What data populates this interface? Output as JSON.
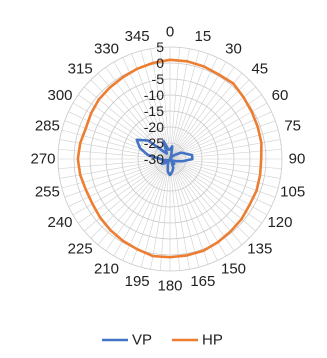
{
  "chart_data": {
    "type": "line",
    "subtype": "polar",
    "title": "",
    "angle_ticks": [
      0,
      15,
      30,
      45,
      60,
      75,
      90,
      105,
      120,
      135,
      150,
      165,
      180,
      195,
      210,
      225,
      240,
      255,
      270,
      285,
      300,
      315,
      330,
      345
    ],
    "radial_ticks": [
      5,
      0,
      -5,
      -10,
      -15,
      -20,
      -25,
      -30
    ],
    "rlim": [
      -30,
      5
    ],
    "angle_grid_step": 5,
    "grid": true,
    "legend_position": "bottom",
    "series": [
      {
        "name": "VP",
        "color": "#4472C4",
        "angles": [
          0,
          10,
          20,
          30,
          40,
          50,
          60,
          70,
          80,
          90,
          100,
          110,
          120,
          130,
          140,
          150,
          160,
          170,
          180,
          190,
          200,
          210,
          220,
          230,
          240,
          250,
          260,
          270,
          280,
          290,
          300,
          310,
          320,
          330,
          340,
          350
        ],
        "values": [
          -27,
          -26,
          -29,
          -30,
          -29,
          -28,
          -26,
          -25,
          -23,
          -23,
          -26,
          -28,
          -29,
          -30,
          -28,
          -29,
          -27,
          -26,
          -25,
          -26,
          -28,
          -29,
          -30,
          -28,
          -27,
          -29,
          -28,
          -27,
          -23,
          -20,
          -18,
          -21,
          -27,
          -28,
          -24,
          -27
        ]
      },
      {
        "name": "HP",
        "color": "#ED7D31",
        "angles": [
          0,
          10,
          20,
          30,
          40,
          50,
          60,
          70,
          80,
          90,
          100,
          110,
          120,
          130,
          140,
          150,
          160,
          170,
          180,
          190,
          200,
          210,
          220,
          230,
          240,
          250,
          260,
          270,
          280,
          290,
          300,
          310,
          320,
          330,
          340,
          350
        ],
        "values": [
          1,
          1,
          0.8,
          0.5,
          0.8,
          0,
          -0.5,
          -0.8,
          -1,
          -1.5,
          -1.4,
          -1.2,
          -1.3,
          -0.8,
          -0.5,
          0,
          0.5,
          0.6,
          0.7,
          0.8,
          0,
          -0.5,
          -1,
          -1.5,
          -2,
          -2,
          -1.5,
          -1.2,
          -1.5,
          -2,
          -1.5,
          -1,
          -0.8,
          -0.5,
          0,
          0.5
        ]
      }
    ]
  }
}
